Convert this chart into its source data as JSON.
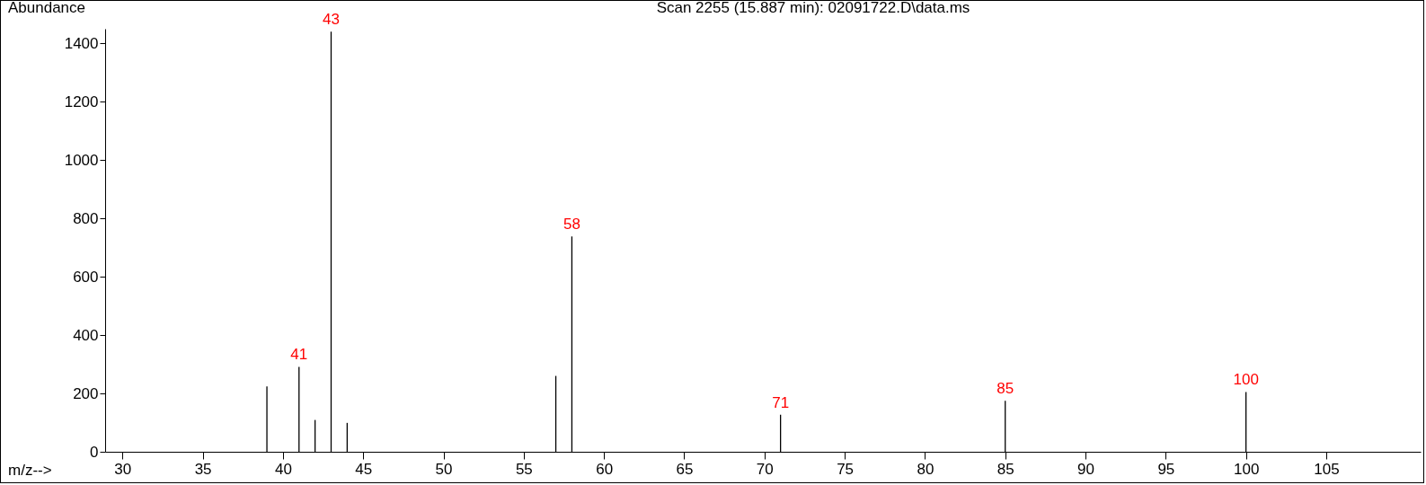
{
  "chart_data": {
    "type": "bar",
    "title": "Scan 2255 (15.887 min): 02091722.D\\data.ms",
    "xlabel": "m/z-->",
    "ylabel": "Abundance",
    "x": [
      39,
      41,
      42,
      43,
      44,
      57,
      58,
      71,
      85,
      100
    ],
    "series": [
      {
        "color": "#000000",
        "values": [
          224,
          291,
          109,
          1440,
          99,
          260,
          738,
          127,
          175,
          205
        ]
      }
    ],
    "value_labels": [
      null,
      "41",
      null,
      "43",
      null,
      null,
      "58",
      "71",
      "85",
      "100"
    ],
    "xlim": [
      29.2,
      110.6
    ],
    "xticks": [
      30,
      35,
      40,
      45,
      50,
      55,
      60,
      65,
      70,
      75,
      80,
      85,
      90,
      95,
      100,
      105
    ],
    "ylim": [
      0,
      1450
    ],
    "yticks": [
      0,
      200,
      400,
      600,
      800,
      1000,
      1200,
      1400
    ],
    "grid": false
  }
}
